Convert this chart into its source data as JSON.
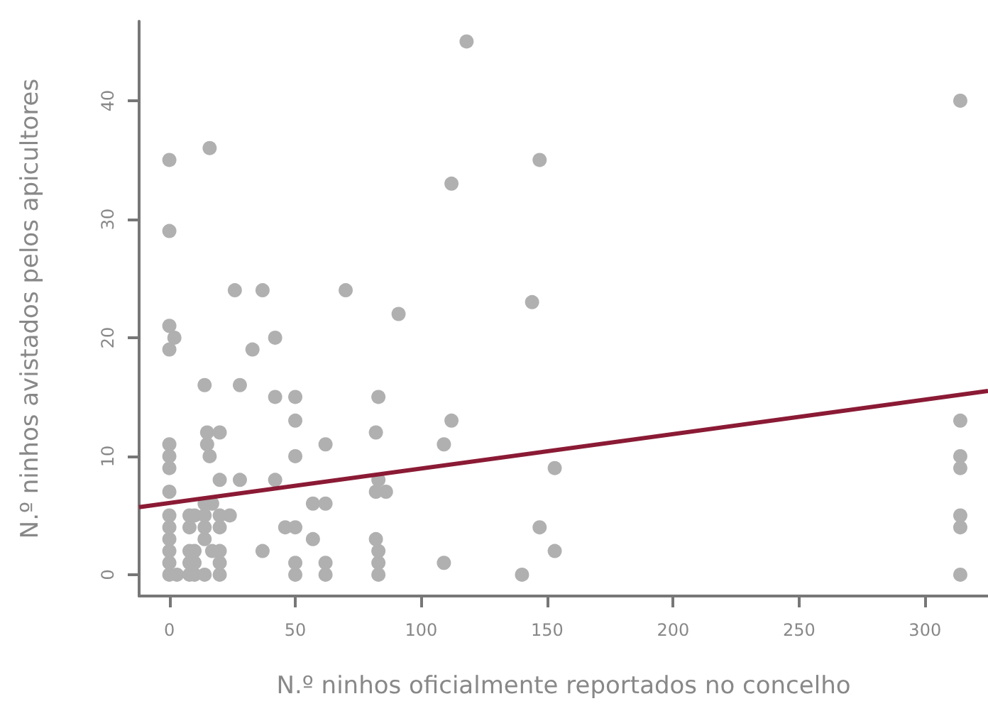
{
  "chart_data": {
    "type": "scatter",
    "xlabel": "N.º ninhos oficialmente reportados no concelho",
    "ylabel": "N.º ninhos avistados pelos apicultores",
    "xlim": [
      -12,
      325
    ],
    "ylim": [
      -1.8,
      46.7
    ],
    "xticks": [
      0,
      50,
      100,
      150,
      200,
      250,
      300
    ],
    "yticks": [
      0,
      10,
      20,
      30,
      40
    ],
    "grid": false,
    "marker": "circle",
    "series": [
      {
        "color": "#b0b0b0",
        "x": [
          0,
          0,
          0,
          0,
          0,
          0,
          0,
          0,
          0,
          0,
          0,
          0,
          0,
          0,
          2,
          3,
          8,
          8,
          8,
          8,
          8,
          10,
          10,
          10,
          10,
          14,
          14,
          14,
          14,
          14,
          14,
          15,
          15,
          16,
          16,
          17,
          17,
          20,
          20,
          20,
          20,
          20,
          20,
          20,
          24,
          26,
          28,
          28,
          33,
          37,
          37,
          42,
          42,
          42,
          46,
          50,
          50,
          50,
          50,
          50,
          50,
          57,
          57,
          62,
          62,
          62,
          62,
          70,
          82,
          82,
          82,
          83,
          83,
          83,
          83,
          83,
          86,
          91,
          109,
          109,
          112,
          112,
          118,
          140,
          144,
          147,
          147,
          153,
          153,
          314,
          314,
          314,
          314,
          314,
          314,
          314
        ],
        "values": [
          0,
          1,
          2,
          3,
          4,
          5,
          7,
          9,
          10,
          11,
          19,
          21,
          29,
          35,
          20,
          0,
          0,
          1,
          2,
          4,
          5,
          0,
          1,
          2,
          5,
          0,
          3,
          4,
          5,
          6,
          16,
          11,
          12,
          10,
          36,
          6,
          2,
          0,
          1,
          2,
          4,
          5,
          8,
          12,
          5,
          24,
          8,
          16,
          19,
          2,
          24,
          8,
          15,
          20,
          4,
          0,
          1,
          4,
          10,
          13,
          15,
          3,
          6,
          0,
          1,
          6,
          11,
          24,
          3,
          7,
          12,
          0,
          1,
          2,
          8,
          15,
          7,
          22,
          1,
          11,
          13,
          33,
          45,
          0,
          23,
          4,
          35,
          2,
          9,
          0,
          4,
          5,
          9,
          10,
          13,
          40
        ]
      },
      {
        "type": "line",
        "color": "#8b1a35",
        "line_style": "solid",
        "marker": "none",
        "x": [
          -12,
          325
        ],
        "values": [
          5.7,
          15.5
        ]
      }
    ]
  }
}
